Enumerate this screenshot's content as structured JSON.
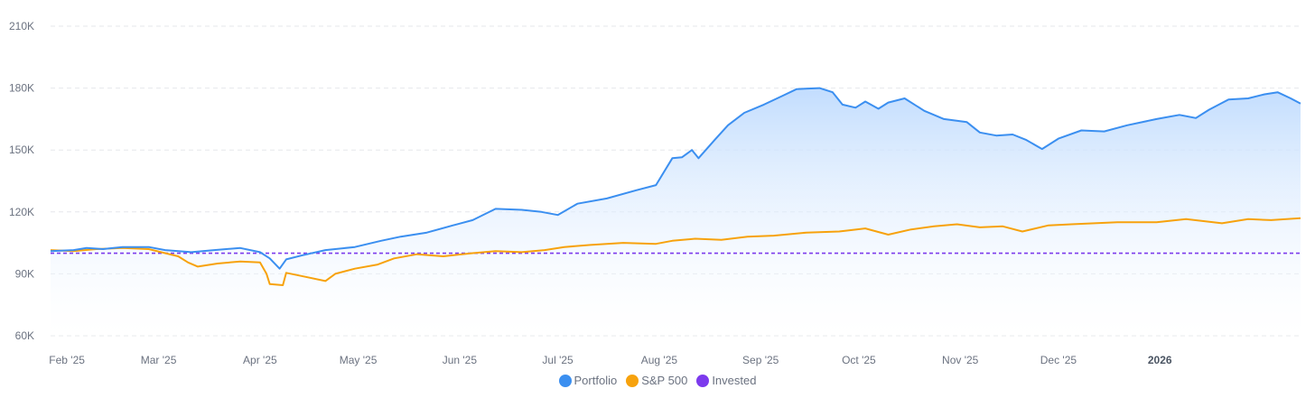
{
  "colors": {
    "portfolio": "#3b8ff0",
    "sp500": "#f7a20d",
    "invested": "#7c3aed",
    "grid": "#e5e7eb",
    "fill_top": "#bfdbfe"
  },
  "chart_data": {
    "type": "line",
    "title": "",
    "xlabel": "",
    "ylabel": "",
    "ylim": [
      60000,
      210000
    ],
    "xlim": [
      "2025-01-27",
      "2026-02-13"
    ],
    "grid": "horizontal-dashed",
    "legend_position": "bottom-center",
    "y_ticks": [
      {
        "value": 60000,
        "label": "60K"
      },
      {
        "value": 90000,
        "label": "90K"
      },
      {
        "value": 120000,
        "label": "120K"
      },
      {
        "value": 150000,
        "label": "150K"
      },
      {
        "value": 180000,
        "label": "180K"
      },
      {
        "value": 210000,
        "label": "210K"
      }
    ],
    "x_ticks": [
      {
        "date": "2025-02-01",
        "label": "Feb '25",
        "bold": false
      },
      {
        "date": "2025-03-01",
        "label": "Mar '25",
        "bold": false
      },
      {
        "date": "2025-04-01",
        "label": "Apr '25",
        "bold": false
      },
      {
        "date": "2025-05-01",
        "label": "May '25",
        "bold": false
      },
      {
        "date": "2025-06-01",
        "label": "Jun '25",
        "bold": false
      },
      {
        "date": "2025-07-01",
        "label": "Jul '25",
        "bold": false
      },
      {
        "date": "2025-08-01",
        "label": "Aug '25",
        "bold": false
      },
      {
        "date": "2025-09-01",
        "label": "Sep '25",
        "bold": false
      },
      {
        "date": "2025-10-01",
        "label": "Oct '25",
        "bold": false
      },
      {
        "date": "2025-11-01",
        "label": "Nov '25",
        "bold": false
      },
      {
        "date": "2025-12-01",
        "label": "Dec '25",
        "bold": false
      },
      {
        "date": "2026-01-01",
        "label": "2026",
        "bold": true
      }
    ],
    "series": [
      {
        "name": "Portfolio",
        "style": "area-line",
        "points": [
          [
            "2025-01-27",
            101000
          ],
          [
            "2025-02-03",
            101500
          ],
          [
            "2025-02-07",
            102500
          ],
          [
            "2025-02-12",
            102000
          ],
          [
            "2025-02-18",
            103000
          ],
          [
            "2025-02-26",
            103000
          ],
          [
            "2025-03-03",
            101500
          ],
          [
            "2025-03-11",
            100500
          ],
          [
            "2025-03-18",
            101500
          ],
          [
            "2025-03-26",
            102500
          ],
          [
            "2025-04-01",
            100500
          ],
          [
            "2025-04-04",
            97500
          ],
          [
            "2025-04-07",
            92500
          ],
          [
            "2025-04-09",
            97000
          ],
          [
            "2025-04-14",
            99000
          ],
          [
            "2025-04-21",
            101500
          ],
          [
            "2025-04-30",
            103000
          ],
          [
            "2025-05-08",
            106000
          ],
          [
            "2025-05-14",
            108000
          ],
          [
            "2025-05-22",
            110000
          ],
          [
            "2025-05-30",
            113500
          ],
          [
            "2025-06-05",
            116000
          ],
          [
            "2025-06-12",
            121500
          ],
          [
            "2025-06-20",
            121000
          ],
          [
            "2025-06-26",
            120000
          ],
          [
            "2025-07-01",
            118500
          ],
          [
            "2025-07-07",
            124000
          ],
          [
            "2025-07-16",
            126500
          ],
          [
            "2025-07-25",
            130500
          ],
          [
            "2025-07-31",
            133000
          ],
          [
            "2025-08-05",
            146000
          ],
          [
            "2025-08-08",
            146500
          ],
          [
            "2025-08-11",
            150000
          ],
          [
            "2025-08-13",
            146000
          ],
          [
            "2025-08-18",
            155000
          ],
          [
            "2025-08-22",
            162000
          ],
          [
            "2025-08-27",
            168000
          ],
          [
            "2025-09-02",
            172000
          ],
          [
            "2025-09-08",
            176500
          ],
          [
            "2025-09-12",
            179500
          ],
          [
            "2025-09-19",
            180000
          ],
          [
            "2025-09-23",
            178000
          ],
          [
            "2025-09-26",
            172000
          ],
          [
            "2025-09-30",
            170500
          ],
          [
            "2025-10-03",
            173500
          ],
          [
            "2025-10-07",
            170000
          ],
          [
            "2025-10-10",
            173000
          ],
          [
            "2025-10-15",
            175000
          ],
          [
            "2025-10-21",
            169000
          ],
          [
            "2025-10-27",
            165000
          ],
          [
            "2025-11-03",
            163500
          ],
          [
            "2025-11-07",
            158500
          ],
          [
            "2025-11-12",
            157000
          ],
          [
            "2025-11-17",
            157500
          ],
          [
            "2025-11-21",
            155000
          ],
          [
            "2025-11-26",
            150500
          ],
          [
            "2025-12-01",
            155500
          ],
          [
            "2025-12-08",
            159500
          ],
          [
            "2025-12-15",
            159000
          ],
          [
            "2025-12-22",
            162000
          ],
          [
            "2025-12-31",
            165000
          ],
          [
            "2026-01-07",
            167000
          ],
          [
            "2026-01-12",
            165500
          ],
          [
            "2026-01-16",
            169500
          ],
          [
            "2026-01-22",
            174500
          ],
          [
            "2026-01-28",
            175000
          ],
          [
            "2026-02-02",
            177000
          ],
          [
            "2026-02-06",
            178000
          ],
          [
            "2026-02-10",
            175000
          ],
          [
            "2026-02-13",
            172500
          ]
        ]
      },
      {
        "name": "S&P 500",
        "style": "line",
        "points": [
          [
            "2025-01-27",
            101500
          ],
          [
            "2025-02-03",
            101000
          ],
          [
            "2025-02-10",
            102000
          ],
          [
            "2025-02-18",
            102500
          ],
          [
            "2025-02-26",
            102000
          ],
          [
            "2025-03-03",
            100000
          ],
          [
            "2025-03-07",
            98500
          ],
          [
            "2025-03-10",
            95500
          ],
          [
            "2025-03-13",
            93500
          ],
          [
            "2025-03-19",
            95000
          ],
          [
            "2025-03-26",
            96000
          ],
          [
            "2025-04-01",
            95500
          ],
          [
            "2025-04-03",
            90000
          ],
          [
            "2025-04-04",
            85000
          ],
          [
            "2025-04-08",
            84500
          ],
          [
            "2025-04-09",
            90500
          ],
          [
            "2025-04-15",
            88500
          ],
          [
            "2025-04-21",
            86500
          ],
          [
            "2025-04-24",
            90000
          ],
          [
            "2025-04-30",
            92500
          ],
          [
            "2025-05-07",
            94500
          ],
          [
            "2025-05-12",
            97500
          ],
          [
            "2025-05-19",
            99500
          ],
          [
            "2025-05-27",
            98500
          ],
          [
            "2025-06-05",
            100000
          ],
          [
            "2025-06-12",
            101000
          ],
          [
            "2025-06-20",
            100500
          ],
          [
            "2025-06-27",
            101500
          ],
          [
            "2025-07-03",
            103000
          ],
          [
            "2025-07-11",
            104000
          ],
          [
            "2025-07-21",
            105000
          ],
          [
            "2025-07-31",
            104500
          ],
          [
            "2025-08-05",
            106000
          ],
          [
            "2025-08-12",
            107000
          ],
          [
            "2025-08-20",
            106500
          ],
          [
            "2025-08-28",
            108000
          ],
          [
            "2025-09-05",
            108500
          ],
          [
            "2025-09-15",
            110000
          ],
          [
            "2025-09-25",
            110500
          ],
          [
            "2025-10-03",
            112000
          ],
          [
            "2025-10-10",
            109000
          ],
          [
            "2025-10-17",
            111500
          ],
          [
            "2025-10-24",
            113000
          ],
          [
            "2025-10-31",
            114000
          ],
          [
            "2025-11-07",
            112500
          ],
          [
            "2025-11-14",
            113000
          ],
          [
            "2025-11-20",
            110500
          ],
          [
            "2025-11-28",
            113500
          ],
          [
            "2025-12-05",
            114000
          ],
          [
            "2025-12-12",
            114500
          ],
          [
            "2025-12-19",
            115000
          ],
          [
            "2025-12-31",
            115000
          ],
          [
            "2026-01-09",
            116500
          ],
          [
            "2026-01-20",
            114500
          ],
          [
            "2026-01-28",
            116500
          ],
          [
            "2026-02-04",
            116000
          ],
          [
            "2026-02-13",
            117000
          ]
        ]
      },
      {
        "name": "Invested",
        "style": "dashed",
        "points": [
          [
            "2025-01-27",
            100000
          ],
          [
            "2026-02-13",
            100000
          ]
        ]
      }
    ]
  }
}
